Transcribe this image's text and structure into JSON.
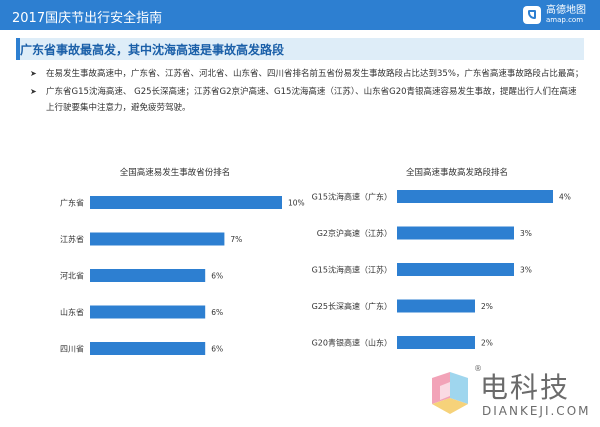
{
  "header": {
    "title": "2017国庆节出行安全指南",
    "logo_cn": "高德地图",
    "logo_en": "amap.com"
  },
  "subtitle": "广东省事故最高发，其中沈海高速是事故高发路段",
  "bullets": [
    "在易发生事故高速中，广东省、江苏省、河北省、山东省、四川省排名前五省份易发生事故路段占比达到35%，广东省高速事故路段占比最高；",
    "广东省G15沈海高速、 G25长深高速；江苏省G2京沪高速、G15沈海高速（江苏）、山东省G20青银高速容易发生事故，提醒出行人们在高速上行驶要集中注意力，避免疲劳驾驶。"
  ],
  "colors": {
    "bar": "#2d7fd1",
    "header": "#2d7fd1",
    "subtitle_bg": "#deedf8"
  },
  "watermark": {
    "cn": "电科技",
    "en": "DIANKEJI.COM",
    "reg": "®"
  },
  "chart_data": [
    {
      "type": "bar",
      "orientation": "horizontal",
      "title": "全国高速易发生事故省份排名",
      "categories": [
        "广东省",
        "江苏省",
        "河北省",
        "山东省",
        "四川省"
      ],
      "values": [
        10,
        7,
        6,
        6,
        6
      ],
      "value_labels": [
        "10%",
        "7%",
        "6%",
        "6%",
        "6%"
      ],
      "unit": "%",
      "xlim": [
        0,
        10
      ],
      "grid": false,
      "legend": "none"
    },
    {
      "type": "bar",
      "orientation": "horizontal",
      "title": "全国高速事故高发路段排名",
      "categories": [
        "G15沈海高速（广东）",
        "G2京沪高速（江苏）",
        "G15沈海高速（江苏）",
        "G25长深高速（广东）",
        "G20青银高速（山东）"
      ],
      "values": [
        4,
        3,
        3,
        2,
        2
      ],
      "value_labels": [
        "4%",
        "3%",
        "3%",
        "2%",
        "2%"
      ],
      "unit": "%",
      "xlim": [
        0,
        4
      ],
      "grid": false,
      "legend": "none"
    }
  ]
}
